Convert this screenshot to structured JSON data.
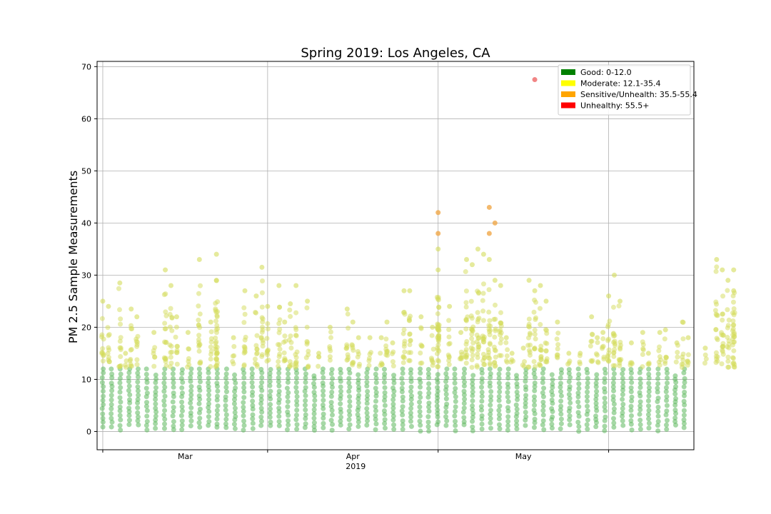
{
  "chart_data": {
    "type": "scatter",
    "title": "Spring 2019: Los Angeles, CA",
    "ylabel": "PM 2.5 Sample Measurements",
    "xlabel": "",
    "x_tick_labels": [
      "Mar",
      "Apr",
      "May"
    ],
    "x_year_label": "2019",
    "x_domain": [
      "2019-02-15",
      "2019-05-31"
    ],
    "x_major_ticks": [
      "2019-02-16",
      "2019-03-17",
      "2019-04-16",
      "2019-05-16"
    ],
    "ylim": [
      -3.5,
      71
    ],
    "yticks": [
      0,
      10,
      20,
      30,
      40,
      50,
      60,
      70
    ],
    "grid": true,
    "legend": {
      "placement": "top-right",
      "entries": [
        {
          "label": "Good: 0-12.0",
          "color": "#008000"
        },
        {
          "label": "Moderate: 12.1-35.4",
          "color": "#ffff00"
        },
        {
          "label": "Sensitive/Unhealth: 35.5-55.4",
          "color": "#ffa500"
        },
        {
          "label": "Unhealthy: 55.5+",
          "color": "#ff0000"
        }
      ]
    },
    "series": [
      {
        "name": "Good: 0-12.0",
        "color": "#5cb85c",
        "daily_max": [
          {
            "date": "2019-02-16",
            "max": 12
          },
          {
            "date": "2019-02-19",
            "max": 11
          },
          {
            "date": "2019-02-22",
            "max": 12
          },
          {
            "date": "2019-02-26",
            "max": 12
          },
          {
            "date": "2019-03-01",
            "max": 12
          },
          {
            "date": "2019-03-05",
            "max": 12
          },
          {
            "date": "2019-03-09",
            "max": 12
          },
          {
            "date": "2019-03-13",
            "max": 12
          },
          {
            "date": "2019-03-17",
            "max": 12
          },
          {
            "date": "2019-03-21",
            "max": 11
          },
          {
            "date": "2019-03-25",
            "max": 12
          },
          {
            "date": "2019-03-29",
            "max": 12
          },
          {
            "date": "2019-04-02",
            "max": 12
          },
          {
            "date": "2019-04-06",
            "max": 12
          },
          {
            "date": "2019-04-10",
            "max": 12
          },
          {
            "date": "2019-04-14",
            "max": 12
          },
          {
            "date": "2019-04-18",
            "max": 12
          },
          {
            "date": "2019-04-22",
            "max": 12
          },
          {
            "date": "2019-04-26",
            "max": 11
          },
          {
            "date": "2019-04-30",
            "max": 12
          },
          {
            "date": "2019-05-04",
            "max": 12
          },
          {
            "date": "2019-05-08",
            "max": 12
          },
          {
            "date": "2019-05-12",
            "max": 12
          },
          {
            "date": "2019-05-16",
            "max": 12
          }
        ]
      },
      {
        "name": "Moderate: 12.1-35.4",
        "color": "#d4dc5a",
        "points": [
          {
            "date": "2019-02-16",
            "value": 25
          },
          {
            "date": "2019-02-17",
            "value": 24
          },
          {
            "date": "2019-02-19",
            "value": 28.5
          },
          {
            "date": "2019-02-20",
            "value": 15
          },
          {
            "date": "2019-02-21",
            "value": 23.5
          },
          {
            "date": "2019-02-22",
            "value": 22
          },
          {
            "date": "2019-02-25",
            "value": 19
          },
          {
            "date": "2019-02-27",
            "value": 31
          },
          {
            "date": "2019-02-28",
            "value": 28
          },
          {
            "date": "2019-03-01",
            "value": 22
          },
          {
            "date": "2019-03-03",
            "value": 19
          },
          {
            "date": "2019-03-05",
            "value": 33
          },
          {
            "date": "2019-03-07",
            "value": 21
          },
          {
            "date": "2019-03-08",
            "value": 34
          },
          {
            "date": "2019-03-08",
            "value": 29
          },
          {
            "date": "2019-03-11",
            "value": 18
          },
          {
            "date": "2019-03-13",
            "value": 27
          },
          {
            "date": "2019-03-15",
            "value": 26
          },
          {
            "date": "2019-03-16",
            "value": 31.5
          },
          {
            "date": "2019-03-17",
            "value": 24
          },
          {
            "date": "2019-03-19",
            "value": 28
          },
          {
            "date": "2019-03-20",
            "value": 21
          },
          {
            "date": "2019-03-21",
            "value": 24.5
          },
          {
            "date": "2019-03-22",
            "value": 28
          },
          {
            "date": "2019-03-24",
            "value": 25
          },
          {
            "date": "2019-03-26",
            "value": 15
          },
          {
            "date": "2019-03-28",
            "value": 20
          },
          {
            "date": "2019-03-31",
            "value": 23.5
          },
          {
            "date": "2019-04-01",
            "value": 21
          },
          {
            "date": "2019-04-02",
            "value": 18
          },
          {
            "date": "2019-04-04",
            "value": 18
          },
          {
            "date": "2019-04-06",
            "value": 18
          },
          {
            "date": "2019-04-07",
            "value": 21
          },
          {
            "date": "2019-04-08",
            "value": 17
          },
          {
            "date": "2019-04-10",
            "value": 27
          },
          {
            "date": "2019-04-11",
            "value": 27
          },
          {
            "date": "2019-04-13",
            "value": 22
          },
          {
            "date": "2019-04-15",
            "value": 20
          },
          {
            "date": "2019-04-16",
            "value": 35
          },
          {
            "date": "2019-04-16",
            "value": 31
          },
          {
            "date": "2019-04-18",
            "value": 24
          },
          {
            "date": "2019-04-20",
            "value": 19
          },
          {
            "date": "2019-04-21",
            "value": 33
          },
          {
            "date": "2019-04-22",
            "value": 32
          },
          {
            "date": "2019-04-23",
            "value": 35
          },
          {
            "date": "2019-04-24",
            "value": 34
          },
          {
            "date": "2019-04-25",
            "value": 33
          },
          {
            "date": "2019-04-26",
            "value": 29
          },
          {
            "date": "2019-04-27",
            "value": 28
          },
          {
            "date": "2019-04-28",
            "value": 18
          },
          {
            "date": "2019-04-29",
            "value": 15
          },
          {
            "date": "2019-05-01",
            "value": 16
          },
          {
            "date": "2019-05-02",
            "value": 29
          },
          {
            "date": "2019-05-03",
            "value": 27
          },
          {
            "date": "2019-05-04",
            "value": 28
          },
          {
            "date": "2019-05-05",
            "value": 25
          },
          {
            "date": "2019-05-07",
            "value": 21
          },
          {
            "date": "2019-05-09",
            "value": 15
          },
          {
            "date": "2019-05-11",
            "value": 15
          },
          {
            "date": "2019-05-13",
            "value": 22
          },
          {
            "date": "2019-05-14",
            "value": 18
          },
          {
            "date": "2019-05-15",
            "value": 19
          },
          {
            "date": "2019-05-16",
            "value": 26
          },
          {
            "date": "2019-05-17",
            "value": 30
          },
          {
            "date": "2019-05-18",
            "value": 25
          },
          {
            "date": "2019-05-20",
            "value": 17
          },
          {
            "date": "2019-05-22",
            "value": 19
          },
          {
            "date": "2019-05-23",
            "value": 15
          },
          {
            "date": "2019-05-25",
            "value": 19
          },
          {
            "date": "2019-05-26",
            "value": 19.5
          },
          {
            "date": "2019-05-28",
            "value": 17
          },
          {
            "date": "2019-05-29",
            "value": 21
          },
          {
            "date": "2019-05-30",
            "value": 18
          },
          {
            "date": "2019-06-02",
            "value": 16
          },
          {
            "date": "2019-06-04",
            "value": 33
          },
          {
            "date": "2019-06-05",
            "value": 31
          },
          {
            "date": "2019-06-06",
            "value": 29
          },
          {
            "date": "2019-06-07",
            "value": 31
          },
          {
            "date": "2019-06-07",
            "value": 27
          }
        ]
      },
      {
        "name": "Sensitive/Unhealth: 35.5-55.4",
        "color": "#f0a848",
        "points": [
          {
            "date": "2019-04-16",
            "value": 42
          },
          {
            "date": "2019-04-16",
            "value": 38
          },
          {
            "date": "2019-04-25",
            "value": 43
          },
          {
            "date": "2019-04-25",
            "value": 38
          },
          {
            "date": "2019-04-26",
            "value": 40
          }
        ]
      },
      {
        "name": "Unhealthy: 55.5+",
        "color": "#ee6666",
        "points": [
          {
            "date": "2019-05-03",
            "value": 67.5
          }
        ]
      }
    ]
  }
}
